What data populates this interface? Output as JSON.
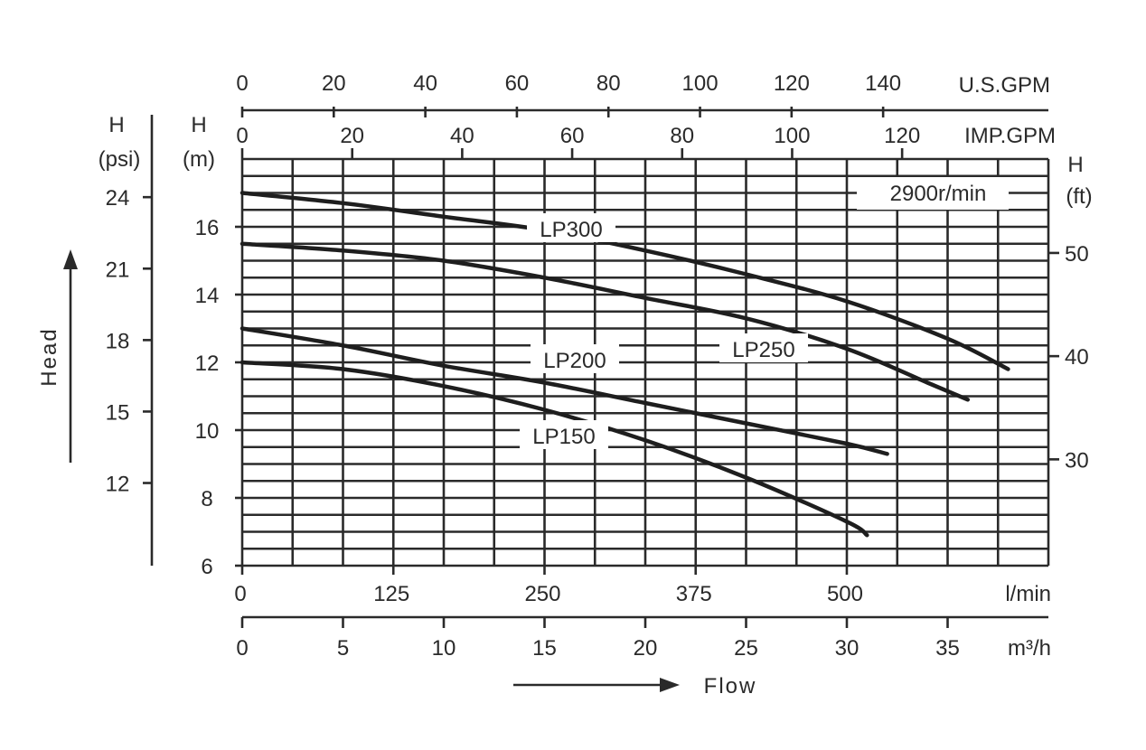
{
  "chart_data": {
    "type": "line",
    "title": "",
    "annotation": "2900r/min",
    "x": {
      "label": "Flow",
      "unit": "m³/h",
      "range": [
        0,
        40
      ],
      "ticks": [
        "0",
        "5",
        "10",
        "15",
        "20",
        "25",
        "30",
        "35"
      ]
    },
    "x_lmin": {
      "unit": "l/min",
      "range": [
        0,
        666.7
      ],
      "ticks": [
        "0",
        "125",
        "250",
        "375",
        "500"
      ]
    },
    "x_usgpm": {
      "unit": "U.S.GPM",
      "range": [
        0,
        176.1
      ],
      "ticks": [
        "0",
        "20",
        "40",
        "60",
        "80",
        "100",
        "120",
        "140"
      ]
    },
    "x_impgpm": {
      "unit": "IMP.GPM",
      "range": [
        0,
        146.6
      ],
      "ticks": [
        "0",
        "20",
        "40",
        "60",
        "80",
        "100",
        "120"
      ]
    },
    "y": {
      "label": "Head",
      "unit": "H (m)",
      "range": [
        6,
        18
      ],
      "ticks": [
        "6",
        "8",
        "10",
        "12",
        "14",
        "16"
      ]
    },
    "y_psi": {
      "unit": "H (psi)",
      "range": [
        8.53,
        25.6
      ],
      "ticks": [
        "12",
        "15",
        "18",
        "21",
        "24"
      ]
    },
    "y_ft": {
      "unit": "H (ft)",
      "range": [
        19.7,
        59.1
      ],
      "ticks": [
        "30",
        "40",
        "50"
      ]
    },
    "series": [
      {
        "name": "LP300",
        "x": [
          0,
          5,
          10,
          15,
          20,
          25,
          30,
          35,
          38
        ],
        "y": [
          17.0,
          16.7,
          16.3,
          15.9,
          15.3,
          14.6,
          13.8,
          12.7,
          11.8
        ]
      },
      {
        "name": "LP250",
        "x": [
          0,
          5,
          10,
          15,
          20,
          25,
          30,
          34,
          36
        ],
        "y": [
          15.5,
          15.3,
          15.0,
          14.5,
          13.9,
          13.3,
          12.4,
          11.4,
          10.9
        ]
      },
      {
        "name": "LP200",
        "x": [
          0,
          5,
          10,
          15,
          20,
          25,
          30,
          32
        ],
        "y": [
          13.0,
          12.5,
          11.9,
          11.4,
          10.8,
          10.2,
          9.6,
          9.3
        ]
      },
      {
        "name": "LP150",
        "x": [
          0,
          5,
          10,
          15,
          20,
          25,
          30,
          31
        ],
        "y": [
          12.0,
          11.8,
          11.3,
          10.6,
          9.7,
          8.6,
          7.3,
          6.9
        ]
      }
    ]
  }
}
